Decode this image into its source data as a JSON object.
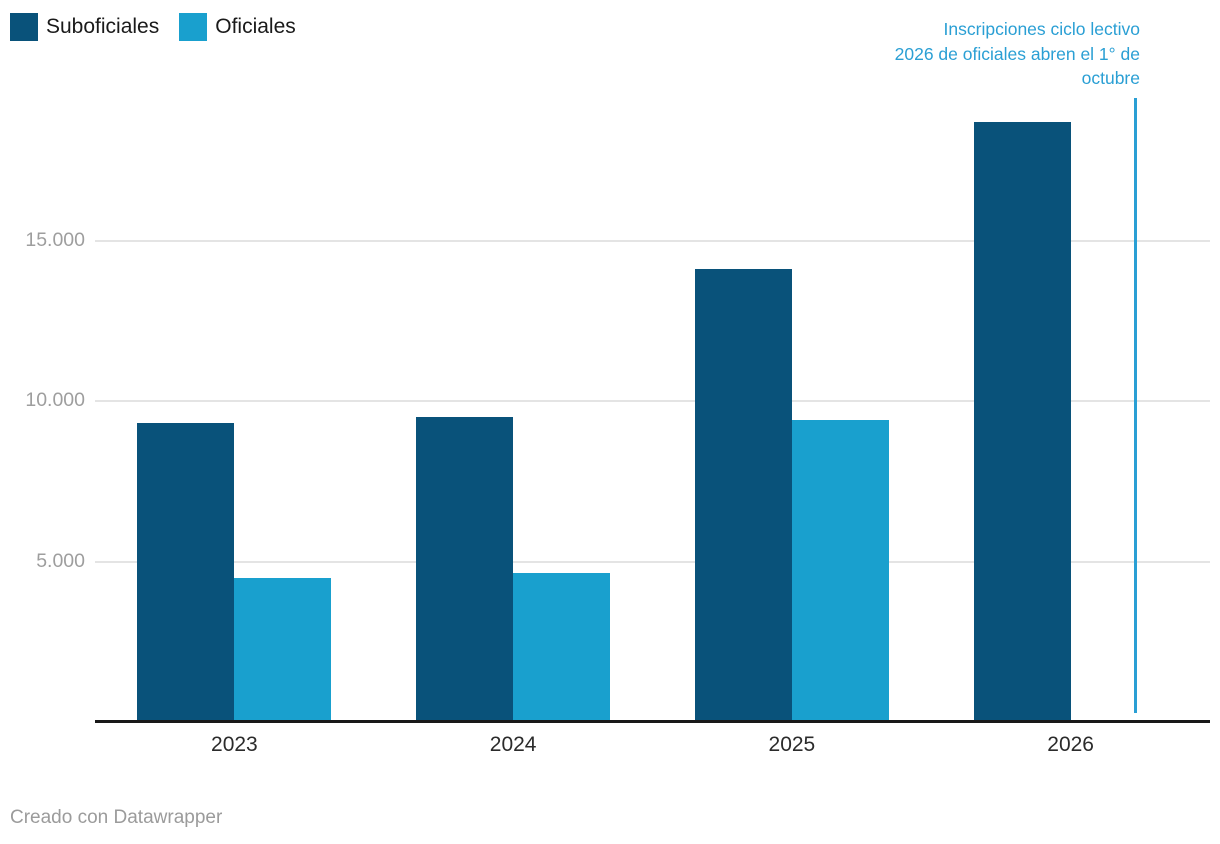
{
  "legend": {
    "items": [
      {
        "label": "Suboficiales",
        "color": "#09527a"
      },
      {
        "label": "Oficiales",
        "color": "#19a0ce"
      }
    ]
  },
  "annotation": {
    "text": "Inscripciones ciclo lectivo 2026 de oficiales abren el 1° de octubre",
    "lines": [
      "Inscripciones ciclo lectivo",
      "2026 de oficiales abren el 1° de",
      "octubre"
    ],
    "color": "#2a9fd4"
  },
  "footer": {
    "credit": "Creado con Datawrapper"
  },
  "chart_data": {
    "type": "bar",
    "categories": [
      "2023",
      "2024",
      "2025",
      "2026"
    ],
    "series": [
      {
        "name": "Suboficiales",
        "color": "#09527a",
        "values": [
          9300,
          9500,
          14100,
          18700
        ]
      },
      {
        "name": "Oficiales",
        "color": "#19a0ce",
        "values": [
          4500,
          4650,
          9400,
          null
        ]
      }
    ],
    "title": "",
    "xlabel": "",
    "ylabel": "",
    "ylim": [
      0,
      20000
    ],
    "yticks": [
      {
        "value": 5000,
        "label": "5.000"
      },
      {
        "value": 10000,
        "label": "10.000"
      },
      {
        "value": 15000,
        "label": "15.000"
      }
    ],
    "grid": "horizontal",
    "legend_position": "top-left",
    "note": "No hay barra de Oficiales en 2026; la línea vertical marca que las inscripciones abren el 1° de octubre"
  }
}
